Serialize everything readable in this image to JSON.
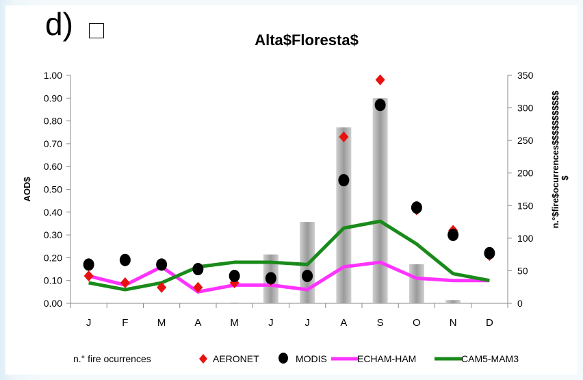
{
  "panel_label": "d)",
  "chart_data": {
    "type": "bar+line+scatter",
    "title": "Alta$Floresta$",
    "ylabel_left": "AOD$",
    "ylabel_right": "n.°$fire$ocurrences$$$$$$$$$$$",
    "ylabel_right_extra": "$",
    "ylim_left": [
      0,
      1.0
    ],
    "ylim_right": [
      0,
      350
    ],
    "yticks_left": [
      "0.00",
      "0.10",
      "0.20",
      "0.30",
      "0.40",
      "0.50",
      "0.60",
      "0.70",
      "0.80",
      "0.90",
      "1.00"
    ],
    "yticks_right": [
      "0",
      "50",
      "100",
      "150",
      "200",
      "250",
      "300",
      "350"
    ],
    "categories": [
      "J",
      "F",
      "M",
      "A",
      "M",
      "J",
      "J",
      "A",
      "S",
      "O",
      "N",
      "D"
    ],
    "series": [
      {
        "name": "n.° fire ocurrences",
        "kind": "bar",
        "axis": "right",
        "color": "#a6a6a6",
        "values": [
          0,
          0,
          0,
          0,
          1,
          75,
          125,
          270,
          315,
          60,
          5,
          0
        ]
      },
      {
        "name": "AERONET",
        "kind": "scatter",
        "marker": "diamond",
        "axis": "left",
        "color": "#e8110f",
        "values": [
          0.12,
          0.09,
          0.07,
          0.07,
          0.09,
          0.1,
          0.12,
          0.73,
          0.98,
          0.41,
          0.32,
          0.21
        ]
      },
      {
        "name": "MODIS",
        "kind": "scatter",
        "marker": "circle",
        "axis": "left",
        "color": "#000000",
        "values": [
          0.17,
          0.19,
          0.17,
          0.15,
          0.12,
          0.11,
          0.12,
          0.54,
          0.87,
          0.42,
          0.3,
          0.22
        ]
      },
      {
        "name": "ECHAM-HAM",
        "kind": "line",
        "axis": "left",
        "color": "#ff33ff",
        "values": [
          0.12,
          0.08,
          0.16,
          0.05,
          0.08,
          0.08,
          0.06,
          0.16,
          0.18,
          0.11,
          0.1,
          0.1
        ]
      },
      {
        "name": "CAM5-MAM3",
        "kind": "line",
        "axis": "left",
        "color": "#1a8a1a",
        "values": [
          0.09,
          0.06,
          0.09,
          0.16,
          0.18,
          0.18,
          0.17,
          0.33,
          0.36,
          0.26,
          0.13,
          0.1
        ]
      }
    ],
    "legend_position": "bottom"
  }
}
